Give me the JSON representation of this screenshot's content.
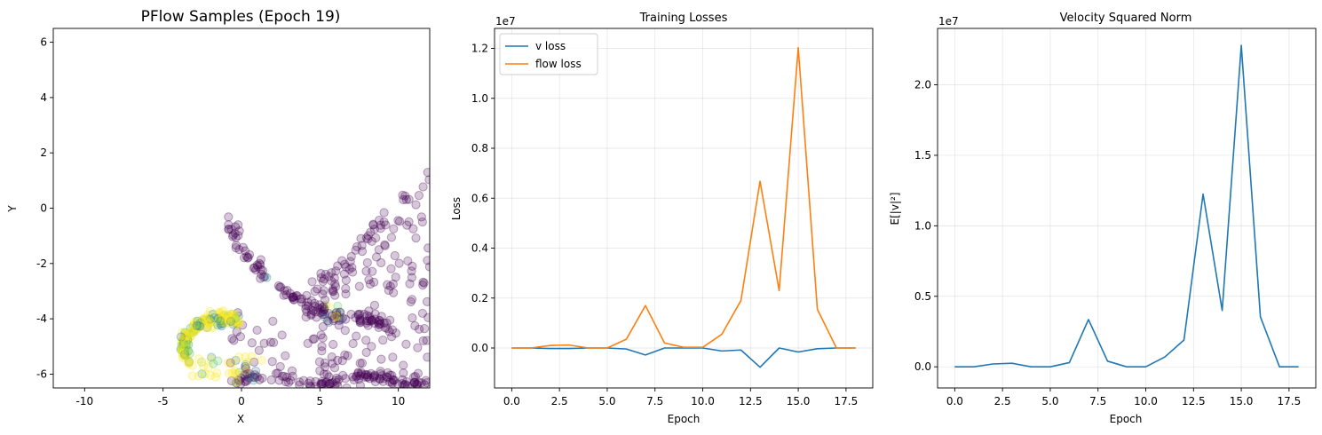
{
  "chart_data": [
    {
      "type": "scatter",
      "title": "PFlow Samples (Epoch 19)",
      "xlabel": "X",
      "ylabel": "Y",
      "xlim": [
        -12,
        12
      ],
      "ylim": [
        -6.5,
        6.5
      ],
      "xticks": [
        -10,
        -5,
        0,
        5,
        10
      ],
      "yticks": [
        -6,
        -4,
        -2,
        0,
        2,
        4,
        6
      ],
      "grid": false,
      "colormap": "viridis",
      "point_alpha": 0.22,
      "groups": [
        {
          "arc": "lower",
          "x_start": -0.8,
          "x_end": 12,
          "y_at_end": -6.1,
          "color": "#440154",
          "count": 150
        },
        {
          "arc": "upper",
          "x_start": -1.0,
          "x_end": 9.5,
          "color": "#440154",
          "count": 130
        },
        {
          "arc": "hook",
          "color": "#fde725",
          "count": 240
        },
        {
          "arc": "cloud_right",
          "x_range": [
            4.5,
            12
          ],
          "y_range": [
            -6.5,
            1.8
          ],
          "color": "#440154",
          "count": 180
        }
      ]
    },
    {
      "type": "line",
      "title": "Training Losses",
      "xlabel": "Epoch",
      "ylabel": "Loss",
      "offset_text": "1e7",
      "scale": 10000000,
      "xlim": [
        -0.9,
        18.9
      ],
      "ylim": [
        -0.16,
        1.28
      ],
      "xticks": [
        0,
        2.5,
        5,
        7.5,
        10,
        12.5,
        15,
        17.5
      ],
      "xtick_labels": [
        "0.0",
        "2.5",
        "5.0",
        "7.5",
        "10.0",
        "12.5",
        "15.0",
        "17.5"
      ],
      "yticks": [
        0,
        0.2,
        0.4,
        0.6,
        0.8,
        1.0,
        1.2
      ],
      "ytick_labels": [
        "0.0",
        "0.2",
        "0.4",
        "0.6",
        "0.8",
        "1.0",
        "1.2"
      ],
      "grid": true,
      "legend": "upper-left",
      "x": [
        0,
        1,
        2,
        3,
        4,
        5,
        6,
        7,
        8,
        9,
        10,
        11,
        12,
        13,
        14,
        15,
        16,
        17,
        18
      ],
      "series": [
        {
          "name": "v loss",
          "color": "#1f77b4",
          "values": [
            0,
            0,
            -0.002,
            -0.002,
            0,
            0,
            -0.004,
            -0.028,
            0,
            0,
            0,
            -0.012,
            -0.008,
            -0.077,
            0,
            -0.016,
            -0.003,
            0,
            0
          ]
        },
        {
          "name": "flow loss",
          "color": "#ff7f0e",
          "values": [
            0,
            0,
            0.01,
            0.012,
            0,
            0,
            0.035,
            0.17,
            0.02,
            0.003,
            0.003,
            0.055,
            0.19,
            0.668,
            0.23,
            1.203,
            0.155,
            0,
            0
          ]
        }
      ]
    },
    {
      "type": "line",
      "title": "Velocity Squared Norm",
      "xlabel": "Epoch",
      "ylabel": "E[|v|²]",
      "offset_text": "1e7",
      "scale": 10000000,
      "xlim": [
        -0.9,
        18.9
      ],
      "ylim": [
        -0.15,
        2.4
      ],
      "xticks": [
        0,
        2.5,
        5,
        7.5,
        10,
        12.5,
        15,
        17.5
      ],
      "xtick_labels": [
        "0.0",
        "2.5",
        "5.0",
        "7.5",
        "10.0",
        "12.5",
        "15.0",
        "17.5"
      ],
      "yticks": [
        0,
        0.5,
        1.0,
        1.5,
        2.0
      ],
      "ytick_labels": [
        "0.0",
        "0.5",
        "1.0",
        "1.5",
        "2.0"
      ],
      "grid": true,
      "x": [
        0,
        1,
        2,
        3,
        4,
        5,
        6,
        7,
        8,
        9,
        10,
        11,
        12,
        13,
        14,
        15,
        16,
        17,
        18
      ],
      "series": [
        {
          "color": "#1f77b4",
          "values": [
            0,
            0,
            0.02,
            0.025,
            0,
            0,
            0.03,
            0.335,
            0.04,
            0,
            0,
            0.07,
            0.19,
            1.225,
            0.4,
            2.28,
            0.355,
            0,
            0
          ]
        }
      ]
    }
  ]
}
